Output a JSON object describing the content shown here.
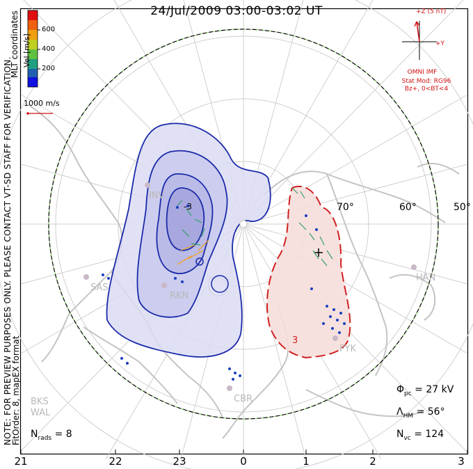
{
  "title": "24/Jul/2009 03:00-03:02 UT",
  "preview_note": "NOTE: FOR PREVIEW PURPOSES ONLY. PLEASE CONTACT VT-SD STAFF FOR VERIFICATION.",
  "coord_label": "MLT coordinates",
  "fit_label": "FitOrder: 8, mapEX format",
  "colorbar": {
    "label": "Vel [m/s]",
    "ticks": [
      "600",
      "400",
      "200"
    ],
    "colors": [
      "#e01010",
      "#f06010",
      "#f0a010",
      "#c0d020",
      "#60c040",
      "#20a080",
      "#2060b0",
      "#1010e0"
    ]
  },
  "scale_vector_label": "1000 m/s",
  "imf": {
    "z_label": "+Z (5 nT)",
    "y_label": "+Y",
    "source": "OMNI IMF",
    "stat_mod": "Stat Mod: RG96",
    "condition": "Bz+, 0<BT<4"
  },
  "stats": {
    "phi_symbol": "Φ",
    "phi_sub": "pc",
    "phi_value": "= 27 kV",
    "lambda_symbol": "Λ",
    "lambda_sub": "HM",
    "lambda_value": "= 56°",
    "nvc_symbol": "N",
    "nvc_sub": "vc",
    "nvc_value": "= 124",
    "nrads_symbol": "N",
    "nrads_sub": "rads",
    "nrads_value": "= 8"
  },
  "mlt_ticks": [
    "21",
    "22",
    "23",
    "0",
    "1",
    "2",
    "3"
  ],
  "latitude_labels": [
    "70°",
    "60°",
    "50°"
  ],
  "radar_sites": [
    "INV",
    "SAS",
    "RKN",
    "HAN",
    "PYK",
    "CBR",
    "BKS",
    "WAL"
  ],
  "contour_labels": {
    "negative": "-3",
    "positive": "3"
  },
  "colors": {
    "negative_fill": "#dcdcf4",
    "negative_line": "#1a2aa8",
    "positive_fill": "#f6dedc",
    "positive_line": "#d02020",
    "boundary_green": "#60c030"
  }
}
